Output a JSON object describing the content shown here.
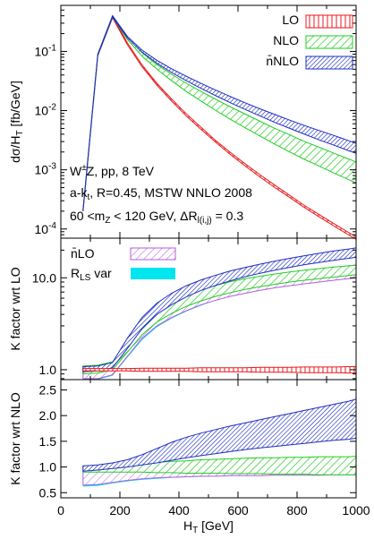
{
  "chart_data": [
    {
      "panel": "top",
      "type": "line",
      "ylabel": "dσ/dH_T [fb/GeV]",
      "yscale": "log",
      "xlim": [
        0,
        1000
      ],
      "ylim": [
        7e-05,
        0.6
      ],
      "yticks": [
        {
          "value": 0.1,
          "base": "10",
          "exp": "-1"
        },
        {
          "value": 0.01,
          "base": "10",
          "exp": "-2"
        },
        {
          "value": 0.001,
          "base": "10",
          "exp": "-3"
        },
        {
          "value": 0.0001,
          "base": "10",
          "exp": "-4"
        }
      ],
      "legend_position": "top-right",
      "annotations": [
        "W±Z, pp, 8 TeV",
        "a-k_t, R=0.45, MSTW NNLO 2008",
        "60 <m_Z < 120 GeV, ΔR_l(i,j) = 0.3"
      ],
      "series": [
        {
          "name": "LO",
          "color": "#e8191d",
          "pattern": "hatch-vertical",
          "x": [
            75,
            125,
            175,
            225,
            275,
            325,
            375,
            425,
            475,
            525,
            575,
            625,
            675,
            725,
            775,
            825,
            875,
            925,
            975,
            1000
          ],
          "lower": [
            0.0002,
            0.085,
            0.37,
            0.13,
            0.055,
            0.027,
            0.0145,
            0.0081,
            0.0048,
            0.0029,
            0.0018,
            0.00115,
            0.00075,
            0.0005,
            0.00034,
            0.00023,
            0.00016,
            0.000112,
            7.9e-05,
            6.7e-05
          ],
          "upper": [
            0.00021,
            0.09,
            0.39,
            0.14,
            0.059,
            0.029,
            0.0157,
            0.0088,
            0.0052,
            0.0031,
            0.00195,
            0.00125,
            0.00082,
            0.00055,
            0.00037,
            0.00025,
            0.000175,
            0.000123,
            8.7e-05,
            7.4e-05
          ]
        },
        {
          "name": "NLO",
          "color": "#22cc22",
          "pattern": "hatch-diagonal",
          "x": [
            75,
            125,
            175,
            225,
            275,
            325,
            375,
            425,
            475,
            525,
            575,
            625,
            675,
            725,
            775,
            825,
            875,
            925,
            975,
            1000
          ],
          "lower": [
            0.0002,
            0.085,
            0.38,
            0.16,
            0.083,
            0.05,
            0.032,
            0.021,
            0.0145,
            0.01,
            0.0071,
            0.0051,
            0.0037,
            0.0027,
            0.002,
            0.0015,
            0.00115,
            0.00088,
            0.00068,
            0.0006
          ],
          "upper": [
            0.00021,
            0.09,
            0.4,
            0.175,
            0.095,
            0.06,
            0.041,
            0.029,
            0.021,
            0.0155,
            0.0115,
            0.0087,
            0.0066,
            0.005,
            0.0039,
            0.003,
            0.0024,
            0.0019,
            0.00152,
            0.00135
          ]
        },
        {
          "name": "n̄NLO",
          "color": "#1f2fbf",
          "pattern": "hatch-dense",
          "x": [
            75,
            125,
            175,
            225,
            275,
            325,
            375,
            425,
            475,
            525,
            575,
            625,
            675,
            725,
            775,
            825,
            875,
            925,
            975,
            1000
          ],
          "lower": [
            0.0002,
            0.086,
            0.38,
            0.17,
            0.097,
            0.063,
            0.044,
            0.032,
            0.0237,
            0.0178,
            0.0135,
            0.0104,
            0.0081,
            0.0063,
            0.005,
            0.004,
            0.0032,
            0.0026,
            0.0021,
            0.0019
          ],
          "upper": [
            0.00021,
            0.09,
            0.4,
            0.18,
            0.105,
            0.071,
            0.051,
            0.038,
            0.0288,
            0.0222,
            0.0172,
            0.0135,
            0.0107,
            0.0086,
            0.0069,
            0.0056,
            0.0046,
            0.0038,
            0.0031,
            0.0028
          ]
        }
      ]
    },
    {
      "panel": "middle",
      "type": "line",
      "ylabel": "K factor wrt LO",
      "yscale": "log",
      "xlim": [
        0,
        1000
      ],
      "ylim": [
        0.78,
        27
      ],
      "yticks": [
        {
          "value": 1,
          "label": "1.0"
        },
        {
          "value": 10,
          "label": "10.0"
        }
      ],
      "legend_position": "top-left",
      "legend": [
        "n̄LO",
        "R_LS var"
      ],
      "series": [
        {
          "name": "R_LS var",
          "color": "#00e5ee",
          "pattern": "solid",
          "x": [
            75,
            125,
            175,
            225,
            275,
            325,
            375,
            425,
            475,
            525,
            575,
            625,
            675,
            725,
            775,
            825,
            875,
            925,
            975,
            1000
          ],
          "lower": [
            0.78,
            0.78,
            0.86,
            1.35,
            2.1,
            2.9,
            3.6,
            4.3,
            5.0,
            5.7,
            6.3,
            6.9,
            7.4,
            7.9,
            8.3,
            8.8,
            9.3,
            9.7,
            10.2,
            10.5
          ],
          "upper": [
            0.88,
            0.9,
            1.02,
            1.65,
            2.5,
            3.4,
            4.2,
            5.0,
            5.7,
            6.4,
            7.0,
            7.6,
            8.2,
            8.7,
            9.2,
            9.7,
            10.2,
            10.7,
            11.2,
            11.5
          ]
        },
        {
          "name": "n̄LO",
          "color": "#b25be0",
          "pattern": "hatch-diagonal",
          "x": [
            75,
            125,
            175,
            225,
            275,
            325,
            375,
            425,
            475,
            525,
            575,
            625,
            675,
            725,
            775,
            825,
            875,
            925,
            975,
            1000
          ],
          "lower": [
            0.8,
            0.8,
            0.88,
            1.4,
            2.2,
            3.0,
            3.7,
            4.4,
            5.1,
            5.7,
            6.3,
            6.8,
            7.3,
            7.8,
            8.2,
            8.6,
            9.0,
            9.4,
            9.8,
            10.0
          ],
          "upper": [
            1.0,
            1.0,
            1.1,
            1.9,
            3.0,
            4.2,
            5.3,
            6.3,
            7.2,
            8.0,
            8.8,
            9.5,
            10.2,
            10.8,
            11.4,
            12.0,
            12.5,
            13.0,
            13.5,
            13.8
          ]
        },
        {
          "name": "NLO",
          "color": "#22cc22",
          "pattern": "hatch-diagonal",
          "x": [
            75,
            125,
            175,
            225,
            275,
            325,
            375,
            425,
            475,
            525,
            575,
            625,
            675,
            725,
            775,
            825,
            875,
            925,
            975,
            1000
          ],
          "lower": [
            0.9,
            0.92,
            1.0,
            1.55,
            2.4,
            3.3,
            4.1,
            4.9,
            5.6,
            6.3,
            6.9,
            7.5,
            8.0,
            8.5,
            9.0,
            9.4,
            9.8,
            10.2,
            10.6,
            10.8
          ],
          "upper": [
            1.1,
            1.12,
            1.22,
            2.0,
            3.2,
            4.5,
            5.6,
            6.6,
            7.5,
            8.3,
            9.1,
            9.8,
            10.4,
            11.0,
            11.6,
            12.1,
            12.6,
            13.1,
            13.5,
            13.7
          ]
        },
        {
          "name": "n̄NLO",
          "color": "#1f2fbf",
          "pattern": "hatch-dense",
          "x": [
            75,
            125,
            175,
            225,
            275,
            325,
            375,
            425,
            475,
            525,
            575,
            625,
            675,
            725,
            775,
            825,
            875,
            925,
            975,
            1000
          ],
          "lower": [
            0.95,
            0.97,
            1.05,
            1.7,
            2.8,
            4.0,
            5.1,
            6.2,
            7.3,
            8.3,
            9.3,
            10.3,
            11.2,
            12.1,
            13.0,
            13.9,
            14.7,
            15.5,
            16.3,
            16.7
          ],
          "upper": [
            1.08,
            1.1,
            1.2,
            2.2,
            3.7,
            5.3,
            6.8,
            8.2,
            9.5,
            10.7,
            11.9,
            13.0,
            14.1,
            15.2,
            16.3,
            17.4,
            18.5,
            19.6,
            20.6,
            21.2
          ]
        },
        {
          "name": "LO",
          "color": "#e8191d",
          "pattern": "hatch-vertical",
          "x": [
            75,
            125,
            175,
            225,
            275,
            325,
            375,
            425,
            475,
            525,
            575,
            625,
            675,
            725,
            775,
            825,
            875,
            925,
            975,
            1000
          ],
          "lower": [
            0.97,
            0.97,
            0.97,
            0.97,
            0.96,
            0.96,
            0.96,
            0.96,
            0.95,
            0.95,
            0.95,
            0.95,
            0.94,
            0.94,
            0.94,
            0.93,
            0.93,
            0.93,
            0.92,
            0.92
          ],
          "upper": [
            1.03,
            1.03,
            1.03,
            1.03,
            1.04,
            1.04,
            1.04,
            1.04,
            1.05,
            1.05,
            1.05,
            1.05,
            1.06,
            1.06,
            1.06,
            1.07,
            1.07,
            1.07,
            1.08,
            1.08
          ]
        }
      ]
    },
    {
      "panel": "bottom",
      "type": "line",
      "ylabel": "K factor wrt NLO",
      "xlabel": "H_T [GeV]",
      "yscale": "linear",
      "xlim": [
        0,
        1000
      ],
      "ylim": [
        0.4,
        2.7
      ],
      "yticks": [
        {
          "value": 0.5,
          "label": "0.5"
        },
        {
          "value": 1.0,
          "label": "1.0"
        },
        {
          "value": 1.5,
          "label": "1.5"
        },
        {
          "value": 2.0,
          "label": "2.0"
        },
        {
          "value": 2.5,
          "label": "2.5"
        }
      ],
      "xticks": [
        {
          "value": 0,
          "label": "0"
        },
        {
          "value": 200,
          "label": "200"
        },
        {
          "value": 400,
          "label": "400"
        },
        {
          "value": 600,
          "label": "600"
        },
        {
          "value": 800,
          "label": "800"
        },
        {
          "value": 1000,
          "label": "1000"
        }
      ],
      "series": [
        {
          "name": "R_LS var",
          "color": "#00e5ee",
          "pattern": "solid",
          "x": [
            75,
            125,
            175,
            225,
            275,
            325,
            375,
            425,
            475,
            525,
            575,
            625,
            675,
            725,
            775,
            825,
            875,
            925,
            975,
            1000
          ],
          "lower": [
            0.62,
            0.63,
            0.68,
            0.72,
            0.75,
            0.77,
            0.79,
            0.8,
            0.81,
            0.82,
            0.83,
            0.84,
            0.84,
            0.85,
            0.85,
            0.86,
            0.86,
            0.86,
            0.87,
            0.87
          ],
          "upper": [
            0.72,
            0.73,
            0.78,
            0.82,
            0.84,
            0.86,
            0.88,
            0.89,
            0.9,
            0.91,
            0.92,
            0.93,
            0.93,
            0.94,
            0.94,
            0.95,
            0.95,
            0.95,
            0.96,
            0.96
          ]
        },
        {
          "name": "n̄LO",
          "color": "#b25be0",
          "pattern": "hatch-diagonal",
          "x": [
            75,
            125,
            175,
            225,
            275,
            325,
            375,
            425,
            475,
            525,
            575,
            625,
            675,
            725,
            775,
            825,
            875,
            925,
            975,
            1000
          ],
          "lower": [
            0.65,
            0.66,
            0.7,
            0.74,
            0.77,
            0.79,
            0.8,
            0.81,
            0.82,
            0.82,
            0.83,
            0.83,
            0.83,
            0.84,
            0.84,
            0.84,
            0.84,
            0.85,
            0.85,
            0.85
          ],
          "upper": [
            0.9,
            0.92,
            0.95,
            0.98,
            1.0,
            1.02,
            1.04,
            1.05,
            1.06,
            1.07,
            1.08,
            1.08,
            1.09,
            1.09,
            1.1,
            1.1,
            1.11,
            1.11,
            1.12,
            1.12
          ]
        },
        {
          "name": "NLO",
          "color": "#22cc22",
          "pattern": "hatch-diagonal",
          "x": [
            75,
            125,
            175,
            225,
            275,
            325,
            375,
            425,
            475,
            525,
            575,
            625,
            675,
            725,
            775,
            825,
            875,
            925,
            975,
            1000
          ],
          "lower": [
            0.9,
            0.9,
            0.9,
            0.9,
            0.9,
            0.89,
            0.89,
            0.88,
            0.88,
            0.88,
            0.87,
            0.87,
            0.87,
            0.86,
            0.86,
            0.86,
            0.85,
            0.85,
            0.85,
            0.85
          ],
          "upper": [
            1.02,
            1.02,
            1.03,
            1.05,
            1.07,
            1.09,
            1.11,
            1.12,
            1.14,
            1.15,
            1.16,
            1.17,
            1.18,
            1.18,
            1.19,
            1.19,
            1.2,
            1.2,
            1.2,
            1.21
          ]
        },
        {
          "name": "n̄NLO",
          "color": "#1f2fbf",
          "pattern": "hatch-dense",
          "x": [
            75,
            125,
            175,
            225,
            275,
            325,
            375,
            425,
            475,
            525,
            575,
            625,
            675,
            725,
            775,
            825,
            875,
            925,
            975,
            1000
          ],
          "lower": [
            0.92,
            0.94,
            0.97,
            1.0,
            1.04,
            1.08,
            1.13,
            1.18,
            1.22,
            1.26,
            1.3,
            1.34,
            1.37,
            1.4,
            1.43,
            1.46,
            1.49,
            1.52,
            1.54,
            1.56
          ],
          "upper": [
            1.02,
            1.04,
            1.08,
            1.14,
            1.24,
            1.36,
            1.48,
            1.58,
            1.66,
            1.73,
            1.8,
            1.86,
            1.92,
            1.98,
            2.04,
            2.1,
            2.16,
            2.22,
            2.28,
            2.32
          ]
        },
        {
          "name": "LO",
          "color": "#e8191d",
          "pattern": "hatch-vertical",
          "x": [],
          "lower": [],
          "upper": []
        }
      ]
    }
  ]
}
